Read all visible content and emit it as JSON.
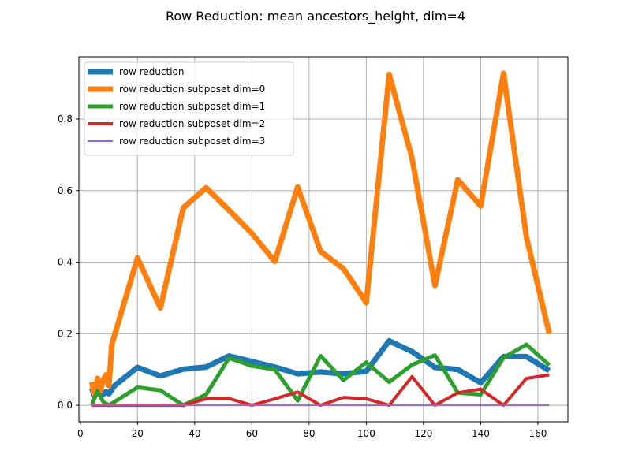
{
  "chart_data": {
    "type": "line",
    "title": "Row Reduction: mean ancestors_height, dim=4",
    "xlabel": "",
    "ylabel": "",
    "xlim": [
      -0.5,
      170.5
    ],
    "ylim": [
      -0.046,
      0.974
    ],
    "xticks": [
      0,
      20,
      40,
      60,
      80,
      100,
      120,
      140,
      160
    ],
    "yticks": [
      0.0,
      0.2,
      0.4,
      0.6,
      0.8
    ],
    "grid": true,
    "legend_position": "top-left",
    "series": [
      {
        "name": "row reduction",
        "color": "#1f77b4",
        "linewidth": 7,
        "x": [
          4,
          5,
          6,
          7,
          8,
          9,
          10,
          12,
          20,
          28,
          36,
          44,
          52,
          60,
          68,
          76,
          84,
          92,
          100,
          108,
          116,
          124,
          132,
          140,
          148,
          156,
          164
        ],
        "y": [
          0.048,
          0.025,
          0.04,
          0.033,
          0.03,
          0.038,
          0.032,
          0.055,
          0.106,
          0.082,
          0.101,
          0.107,
          0.138,
          0.122,
          0.107,
          0.088,
          0.093,
          0.088,
          0.095,
          0.18,
          0.15,
          0.106,
          0.1,
          0.063,
          0.136,
          0.136,
          0.097
        ]
      },
      {
        "name": "row reduction subposet dim=0",
        "color": "#ff7f0e",
        "linewidth": 7,
        "x": [
          4,
          5,
          6,
          7,
          8,
          9,
          10,
          11,
          20,
          28,
          36,
          44,
          52,
          60,
          68,
          76,
          84,
          92,
          100,
          108,
          116,
          124,
          132,
          140,
          148,
          156,
          164
        ],
        "y": [
          0.065,
          0.03,
          0.075,
          0.04,
          0.07,
          0.085,
          0.055,
          0.17,
          0.412,
          0.272,
          0.552,
          0.608,
          0.545,
          0.48,
          0.402,
          0.61,
          0.43,
          0.382,
          0.287,
          0.925,
          0.69,
          0.335,
          0.63,
          0.557,
          0.928,
          0.47,
          0.2
        ]
      },
      {
        "name": "row reduction subposet dim=1",
        "color": "#2ca02c",
        "linewidth": 5,
        "x": [
          4,
          6,
          8,
          10,
          12,
          20,
          28,
          36,
          44,
          52,
          60,
          68,
          76,
          84,
          92,
          100,
          108,
          116,
          124,
          132,
          140,
          148,
          156,
          164
        ],
        "y": [
          0.0,
          0.04,
          0.01,
          0.0,
          0.01,
          0.05,
          0.042,
          0.0,
          0.03,
          0.132,
          0.11,
          0.1,
          0.013,
          0.138,
          0.07,
          0.12,
          0.065,
          0.113,
          0.14,
          0.035,
          0.03,
          0.133,
          0.17,
          0.112
        ]
      },
      {
        "name": "row reduction subposet dim=2",
        "color": "#d62728",
        "linewidth": 4,
        "x": [
          4,
          20,
          36,
          44,
          52,
          60,
          68,
          76,
          84,
          92,
          100,
          108,
          116,
          124,
          132,
          140,
          148,
          156,
          164
        ],
        "y": [
          0.0,
          0.0,
          0.0,
          0.018,
          0.019,
          0.0,
          0.018,
          0.037,
          0.0,
          0.022,
          0.018,
          0.0,
          0.08,
          0.0,
          0.035,
          0.045,
          0.0,
          0.075,
          0.085
        ]
      },
      {
        "name": "row reduction subposet dim=3",
        "color": "#9467bd",
        "linewidth": 2,
        "x": [
          4,
          164
        ],
        "y": [
          0.0,
          0.0
        ]
      }
    ]
  }
}
